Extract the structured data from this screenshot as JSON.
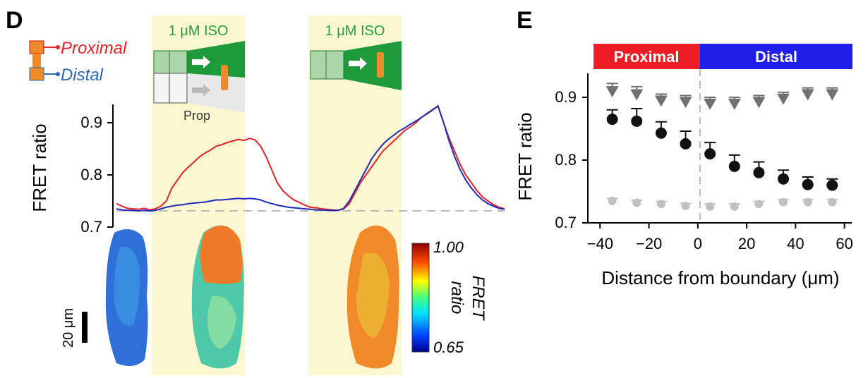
{
  "panel_d": {
    "letter": "D",
    "iso_label_1": "1 μM ISO",
    "iso_label_2": "1 μM ISO",
    "legend": [
      {
        "label": "Proximal",
        "color": "#e8202a"
      },
      {
        "label": "Distal",
        "color": "#2a6ab5"
      }
    ],
    "prop_label": "Prop",
    "colorbar": {
      "max_label": "1.00",
      "min_label": "0.65",
      "title_line1": "FRET",
      "title_line2": "ratio"
    },
    "scalebar_label": "20 μm",
    "colors": {
      "proximal": "#e8202a",
      "distal": "#1f2ab8",
      "iso_band": "#fbf7d0",
      "iso_text": "#22a03a",
      "green_wedge": "#1f9a3a",
      "prop_wedge": "#e6e6e6",
      "cell_orange": "#ee8a2a"
    }
  },
  "panel_e": {
    "letter": "E",
    "bar_proximal": "Proximal",
    "bar_distal": "Distal",
    "colors": {
      "proximal_bar": "#ee1c25",
      "distal_bar": "#1f1fe8",
      "iso_points": "#111111",
      "prop_points": "#707070",
      "baseline_points": "#c0c0c0"
    }
  },
  "chart_data": [
    {
      "type": "line",
      "ylabel": "FRET ratio",
      "xlabel": "",
      "ylim": [
        0.7,
        0.94
      ],
      "yticks": [
        "0.7",
        "0.8",
        "0.9"
      ],
      "baseline": 0.73,
      "series": [
        {
          "name": "Proximal",
          "color": "#e8202a",
          "x": [
            0,
            8,
            16,
            24,
            32,
            40,
            48,
            56,
            64,
            72,
            80,
            88,
            96,
            104,
            112,
            120,
            128,
            136,
            144,
            152,
            160,
            168,
            176,
            184,
            192,
            200,
            208,
            216,
            224,
            232,
            240,
            248,
            256,
            264,
            272,
            280,
            288,
            296,
            304,
            312,
            320,
            328,
            336,
            344,
            352,
            360,
            368,
            376,
            384,
            392,
            400,
            408,
            416,
            424,
            432,
            440,
            448,
            456,
            464,
            472,
            480,
            488,
            496,
            504,
            512,
            520,
            528,
            536,
            544,
            552,
            560
          ],
          "y": [
            0.745,
            0.74,
            0.736,
            0.735,
            0.734,
            0.736,
            0.733,
            0.735,
            0.74,
            0.75,
            0.775,
            0.79,
            0.805,
            0.815,
            0.825,
            0.835,
            0.842,
            0.848,
            0.855,
            0.858,
            0.862,
            0.865,
            0.868,
            0.866,
            0.87,
            0.867,
            0.855,
            0.835,
            0.81,
            0.785,
            0.77,
            0.76,
            0.752,
            0.747,
            0.742,
            0.738,
            0.737,
            0.735,
            0.734,
            0.733,
            0.732,
            0.735,
            0.745,
            0.765,
            0.785,
            0.8,
            0.815,
            0.83,
            0.845,
            0.855,
            0.865,
            0.875,
            0.885,
            0.892,
            0.9,
            0.91,
            0.918,
            0.925,
            0.932,
            0.9,
            0.87,
            0.845,
            0.82,
            0.8,
            0.785,
            0.77,
            0.758,
            0.75,
            0.743,
            0.738,
            0.735
          ]
        },
        {
          "name": "Distal",
          "color": "#1f2ab8",
          "x": [
            0,
            8,
            16,
            24,
            32,
            40,
            48,
            56,
            64,
            72,
            80,
            88,
            96,
            104,
            112,
            120,
            128,
            136,
            144,
            152,
            160,
            168,
            176,
            184,
            192,
            200,
            208,
            216,
            224,
            232,
            240,
            248,
            256,
            264,
            272,
            280,
            288,
            296,
            304,
            312,
            320,
            328,
            336,
            344,
            352,
            360,
            368,
            376,
            384,
            392,
            400,
            408,
            416,
            424,
            432,
            440,
            448,
            456,
            464,
            472,
            480,
            488,
            496,
            504,
            512,
            520,
            528,
            536,
            544,
            552,
            560
          ],
          "y": [
            0.735,
            0.733,
            0.732,
            0.732,
            0.731,
            0.732,
            0.731,
            0.732,
            0.735,
            0.738,
            0.74,
            0.742,
            0.743,
            0.745,
            0.746,
            0.747,
            0.748,
            0.75,
            0.752,
            0.752,
            0.753,
            0.754,
            0.755,
            0.754,
            0.755,
            0.754,
            0.752,
            0.748,
            0.745,
            0.742,
            0.74,
            0.738,
            0.737,
            0.736,
            0.735,
            0.734,
            0.733,
            0.733,
            0.732,
            0.732,
            0.732,
            0.736,
            0.75,
            0.77,
            0.79,
            0.81,
            0.83,
            0.845,
            0.858,
            0.868,
            0.876,
            0.884,
            0.89,
            0.897,
            0.903,
            0.91,
            0.917,
            0.924,
            0.932,
            0.9,
            0.865,
            0.835,
            0.81,
            0.79,
            0.775,
            0.762,
            0.752,
            0.745,
            0.74,
            0.736,
            0.734
          ]
        }
      ]
    },
    {
      "type": "scatter",
      "xlabel": "Distance from boundary (μm)",
      "ylabel": "FRET ratio",
      "xlim": [
        -45,
        63
      ],
      "ylim": [
        0.7,
        0.94
      ],
      "xticks": [
        "−40",
        "−20",
        "0",
        "20",
        "40",
        "60"
      ],
      "yticks": [
        "0.7",
        "0.8",
        "0.9"
      ],
      "series": [
        {
          "marker": "triangle",
          "color": "#707070",
          "x": [
            -35,
            -25,
            -15,
            -5,
            5,
            15,
            25,
            35,
            45,
            55
          ],
          "y": [
            0.91,
            0.905,
            0.895,
            0.893,
            0.89,
            0.89,
            0.893,
            0.898,
            0.905,
            0.905
          ],
          "err": [
            0.012,
            0.012,
            0.01,
            0.01,
            0.01,
            0.01,
            0.01,
            0.01,
            0.01,
            0.01
          ]
        },
        {
          "marker": "circle",
          "color": "#111111",
          "x": [
            -35,
            -25,
            -15,
            -5,
            5,
            15,
            25,
            35,
            45,
            55
          ],
          "y": [
            0.865,
            0.862,
            0.843,
            0.826,
            0.81,
            0.79,
            0.78,
            0.77,
            0.761,
            0.76
          ],
          "err": [
            0.015,
            0.02,
            0.018,
            0.02,
            0.018,
            0.018,
            0.017,
            0.014,
            0.012,
            0.01
          ]
        },
        {
          "marker": "circle",
          "color": "#c0c0c0",
          "x": [
            -35,
            -25,
            -15,
            -5,
            5,
            15,
            25,
            35,
            45,
            55
          ],
          "y": [
            0.735,
            0.732,
            0.73,
            0.727,
            0.726,
            0.726,
            0.73,
            0.733,
            0.733,
            0.733
          ],
          "err": [
            0.004,
            0.004,
            0.004,
            0.004,
            0.004,
            0.004,
            0.004,
            0.004,
            0.004,
            0.004
          ]
        }
      ]
    }
  ]
}
